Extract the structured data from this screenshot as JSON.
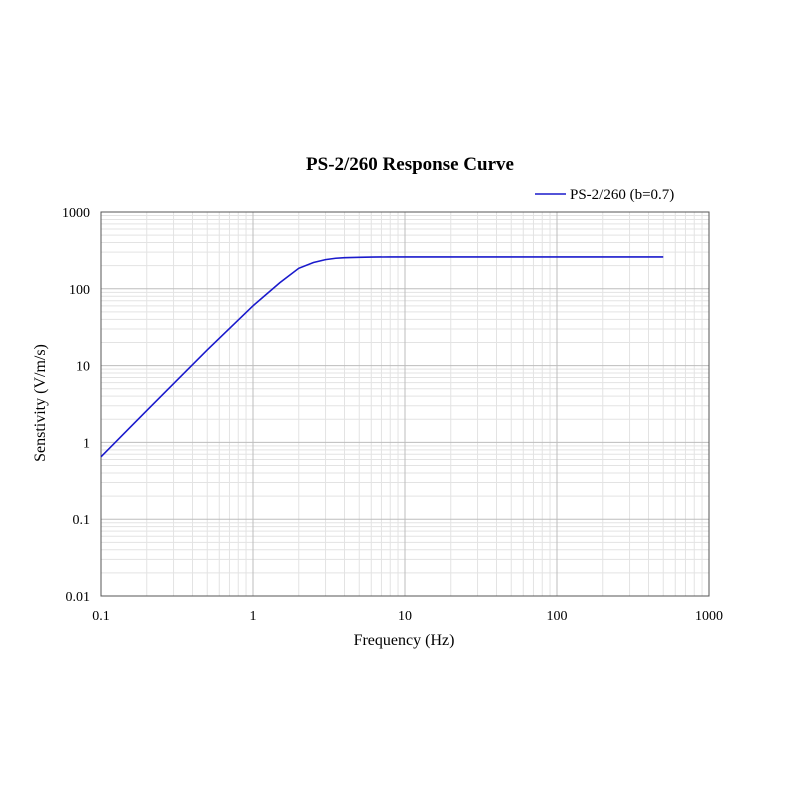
{
  "chart_data": {
    "type": "line",
    "title": "PS-2/260 Response Curve",
    "xlabel": "Frequency (Hz)",
    "ylabel": "Senstivity  (V/m/s)",
    "x_scale": "log",
    "y_scale": "log",
    "xlim": [
      0.1,
      1000
    ],
    "ylim": [
      0.01,
      1000
    ],
    "x_ticks": [
      "0.1",
      "1",
      "10",
      "100",
      "1000"
    ],
    "y_ticks": [
      "0.01",
      "0.1",
      "1",
      "10",
      "100",
      "1000"
    ],
    "grid": true,
    "legend_position": "top-right",
    "series": [
      {
        "name": "PS-2/260 (b=0.7)",
        "color": "#1a1acc",
        "x": [
          0.1,
          0.2,
          0.5,
          1.0,
          1.5,
          2.0,
          2.5,
          3.0,
          3.5,
          4.0,
          5.0,
          6.0,
          8.0,
          10,
          20,
          50,
          100,
          200,
          500
        ],
        "y": [
          0.65,
          2.6,
          16,
          60,
          120,
          185,
          220,
          240,
          250,
          254,
          257,
          259,
          260,
          260,
          260,
          260,
          260,
          260,
          260
        ]
      }
    ]
  }
}
